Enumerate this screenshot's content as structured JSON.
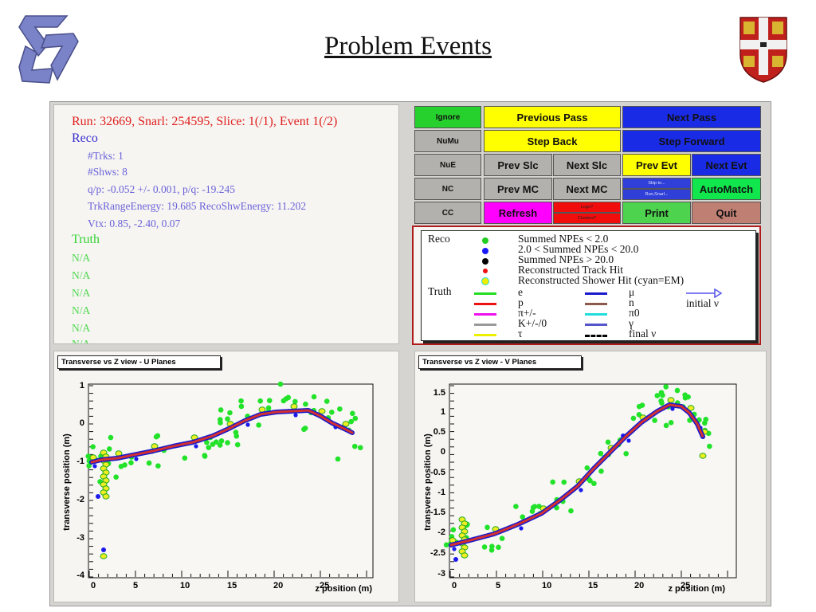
{
  "slide": {
    "title": "Problem Events"
  },
  "event_info": {
    "run_line": "Run: 32669, Snarl: 254595, Slice: 1(/1), Event 1(/2)",
    "reco_header": "Reco",
    "reco_lines": [
      "#Trks: 1",
      "#Shws: 8",
      "q/p: -0.052 +/- 0.001,  p/q: -19.245",
      "TrkRangeEnergy: 19.685   RecoShwEnergy: 11.202",
      "Vtx: 0.85, -2.40, 0.07"
    ],
    "truth_header": "Truth",
    "truth_lines": [
      "N/A",
      "N/A",
      "N/A",
      "N/A",
      "N/A",
      "N/A"
    ]
  },
  "controls": {
    "ignore": "Ignore",
    "numu": "NuMu",
    "nue": "NuE",
    "nc": "NC",
    "cc": "CC",
    "previous_pass": "Previous Pass",
    "next_pass": "Next Pass",
    "step_back": "Step Back",
    "step_forward": "Step Forward",
    "prev_slc": "Prev Slc",
    "next_slc": "Next Slc",
    "prev_evt": "Prev Evt",
    "next_evt": "Next Evt",
    "prev_mc": "Prev MC",
    "next_mc": "Next MC",
    "skip_to": "Skip to...",
    "run_snarl": "Run,Snarl...",
    "automatch": "AutoMatch",
    "refresh": "Refresh",
    "logo": "Logo?",
    "clusters": "Clusters?",
    "print": "Print",
    "quit": "Quit"
  },
  "legend": {
    "reco_label": "Reco",
    "truth_label": "Truth",
    "reco_items": [
      {
        "label": "Summed NPEs < 2.0",
        "color": "#22cc22"
      },
      {
        "label": "2.0 < Summed NPEs < 20.0",
        "color": "#1a1aff"
      },
      {
        "label": "Summed NPEs > 20.0",
        "color": "#000000"
      },
      {
        "label": "Reconstructed Track Hit",
        "color": "#ee1111"
      },
      {
        "label": "Reconstructed Shower Hit (cyan=EM)",
        "color": "#eeee00"
      }
    ],
    "truth_items": [
      {
        "label": "e",
        "color": "#22dd22"
      },
      {
        "label": "μ",
        "color": "#1a1acc"
      },
      {
        "label": "p",
        "color": "#ee1111"
      },
      {
        "label": "n",
        "color": "#8a5a4a"
      },
      {
        "label": "π+/-",
        "color": "#ee11ee"
      },
      {
        "label": "π0",
        "color": "#22dddd"
      },
      {
        "label": "K+/-/0",
        "color": "#999999"
      },
      {
        "label": "γ",
        "color": "#5555cc"
      },
      {
        "label": "τ",
        "color": "#eeee00"
      },
      {
        "label": "final ν",
        "color": "#000000"
      }
    ],
    "initial_nu": "initial ν"
  },
  "plot_u": {
    "title": "Transverse vs Z view - U Planes",
    "xlabel": "z position (m)",
    "ylabel": "transverse position (m)",
    "xticks": [
      "0",
      "5",
      "10",
      "15",
      "20",
      "25"
    ],
    "yticks": [
      "1",
      "0",
      "-1",
      "-2",
      "-3",
      "-4"
    ]
  },
  "plot_v": {
    "title": "Transverse vs Z view - V Planes",
    "xlabel": "z position (m)",
    "ylabel": "transverse position (m)",
    "xticks": [
      "0",
      "5",
      "10",
      "15",
      "20",
      "25"
    ],
    "yticks": [
      "1.5",
      "1",
      "0.5",
      "0",
      "-0.5",
      "-1",
      "-1.5",
      "-2",
      "-2.5",
      "-3"
    ]
  },
  "colors": {
    "track": "#d43030",
    "track_outline": "#1a1acc",
    "hit_low": "#22e22a",
    "hit_mid": "#1a1aee",
    "shower": "#eeee22"
  }
}
